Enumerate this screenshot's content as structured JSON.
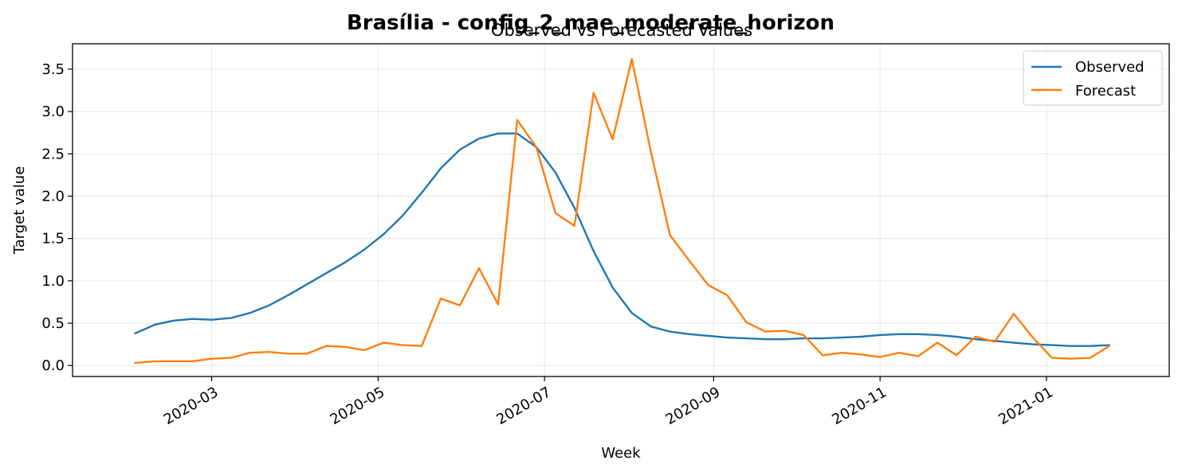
{
  "chart_data": {
    "type": "line",
    "suptitle": "Brasília - config_2_mae_moderate_horizon",
    "title": "Observed vs Forecasted Values",
    "xlabel": "Week",
    "ylabel": "Target value",
    "ylim": [
      -0.13,
      3.8
    ],
    "xlim": [
      "2020-01-10",
      "2021-02-15"
    ],
    "x_ticks": [
      "2020-03-01",
      "2020-05-01",
      "2020-07-01",
      "2020-09-01",
      "2020-11-01",
      "2021-01-01"
    ],
    "x_tick_labels": [
      "2020-03",
      "2020-05",
      "2020-07",
      "2020-09",
      "2020-11",
      "2021-01"
    ],
    "y_ticks": [
      0.0,
      0.5,
      1.0,
      1.5,
      2.0,
      2.5,
      3.0,
      3.5
    ],
    "y_tick_labels": [
      "0.0",
      "0.5",
      "1.0",
      "1.5",
      "2.0",
      "2.5",
      "3.0",
      "3.5"
    ],
    "grid": true,
    "legend_position": "top-right",
    "x": [
      "2020-02-02",
      "2020-02-09",
      "2020-02-16",
      "2020-02-23",
      "2020-03-01",
      "2020-03-08",
      "2020-03-15",
      "2020-03-22",
      "2020-03-29",
      "2020-04-05",
      "2020-04-12",
      "2020-04-19",
      "2020-04-26",
      "2020-05-03",
      "2020-05-10",
      "2020-05-17",
      "2020-05-24",
      "2020-05-31",
      "2020-06-07",
      "2020-06-14",
      "2020-06-21",
      "2020-06-28",
      "2020-07-05",
      "2020-07-12",
      "2020-07-19",
      "2020-07-26",
      "2020-08-02",
      "2020-08-09",
      "2020-08-16",
      "2020-08-23",
      "2020-08-30",
      "2020-09-06",
      "2020-09-13",
      "2020-09-20",
      "2020-09-27",
      "2020-10-04",
      "2020-10-11",
      "2020-10-18",
      "2020-10-25",
      "2020-11-01",
      "2020-11-08",
      "2020-11-15",
      "2020-11-22",
      "2020-11-29",
      "2020-12-06",
      "2020-12-13",
      "2020-12-20",
      "2020-12-27",
      "2021-01-03",
      "2021-01-10",
      "2021-01-17",
      "2021-01-24"
    ],
    "series": [
      {
        "name": "Observed",
        "color": "#1f77b4",
        "values": [
          0.38,
          0.48,
          0.53,
          0.55,
          0.54,
          0.56,
          0.62,
          0.71,
          0.83,
          0.96,
          1.09,
          1.22,
          1.37,
          1.55,
          1.77,
          2.04,
          2.33,
          2.55,
          2.68,
          2.74,
          2.74,
          2.58,
          2.28,
          1.86,
          1.35,
          0.92,
          0.62,
          0.46,
          0.4,
          0.37,
          0.35,
          0.33,
          0.32,
          0.31,
          0.31,
          0.32,
          0.32,
          0.33,
          0.34,
          0.36,
          0.37,
          0.37,
          0.36,
          0.34,
          0.31,
          0.29,
          0.27,
          0.25,
          0.24,
          0.23,
          0.23,
          0.24
        ]
      },
      {
        "name": "Forecast",
        "color": "#ff7f0e",
        "values": [
          0.03,
          0.05,
          0.05,
          0.05,
          0.08,
          0.09,
          0.15,
          0.16,
          0.14,
          0.14,
          0.23,
          0.22,
          0.18,
          0.27,
          0.24,
          0.23,
          0.79,
          0.71,
          1.15,
          0.72,
          2.9,
          2.58,
          1.8,
          1.65,
          3.22,
          2.67,
          3.62,
          2.52,
          1.54,
          1.24,
          0.95,
          0.83,
          0.51,
          0.4,
          0.41,
          0.36,
          0.12,
          0.15,
          0.13,
          0.1,
          0.15,
          0.11,
          0.27,
          0.12,
          0.34,
          0.28,
          0.61,
          0.33,
          0.09,
          0.08,
          0.09,
          0.23
        ]
      }
    ]
  }
}
